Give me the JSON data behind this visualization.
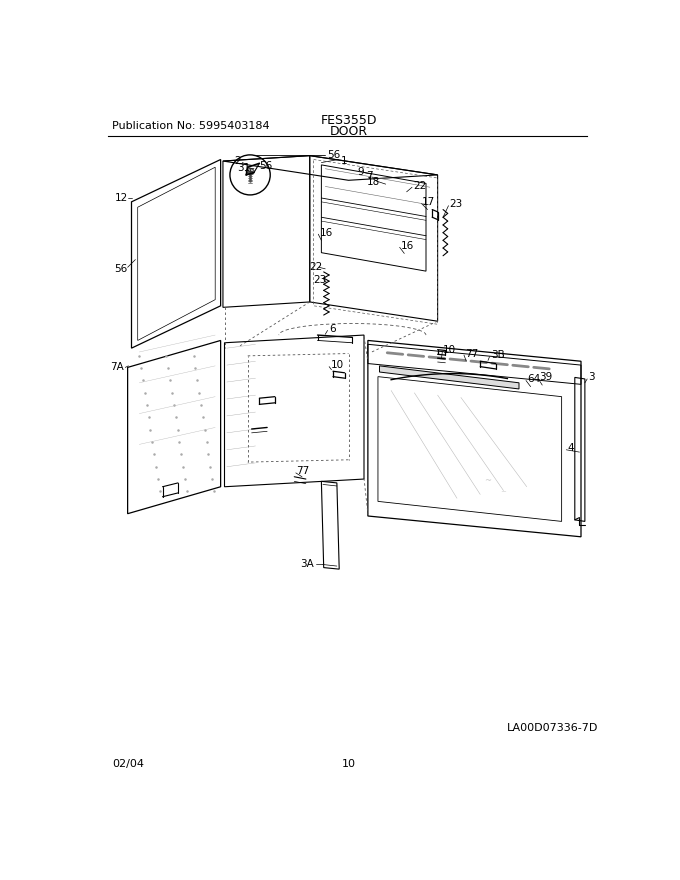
{
  "pub_no": "Publication No: 5995403184",
  "model": "FES355D",
  "section": "DOOR",
  "diagram_id": "LA00D07336-7D",
  "date": "02/04",
  "page": "10",
  "background_color": "#ffffff",
  "line_color": "#000000",
  "text_color": "#000000"
}
